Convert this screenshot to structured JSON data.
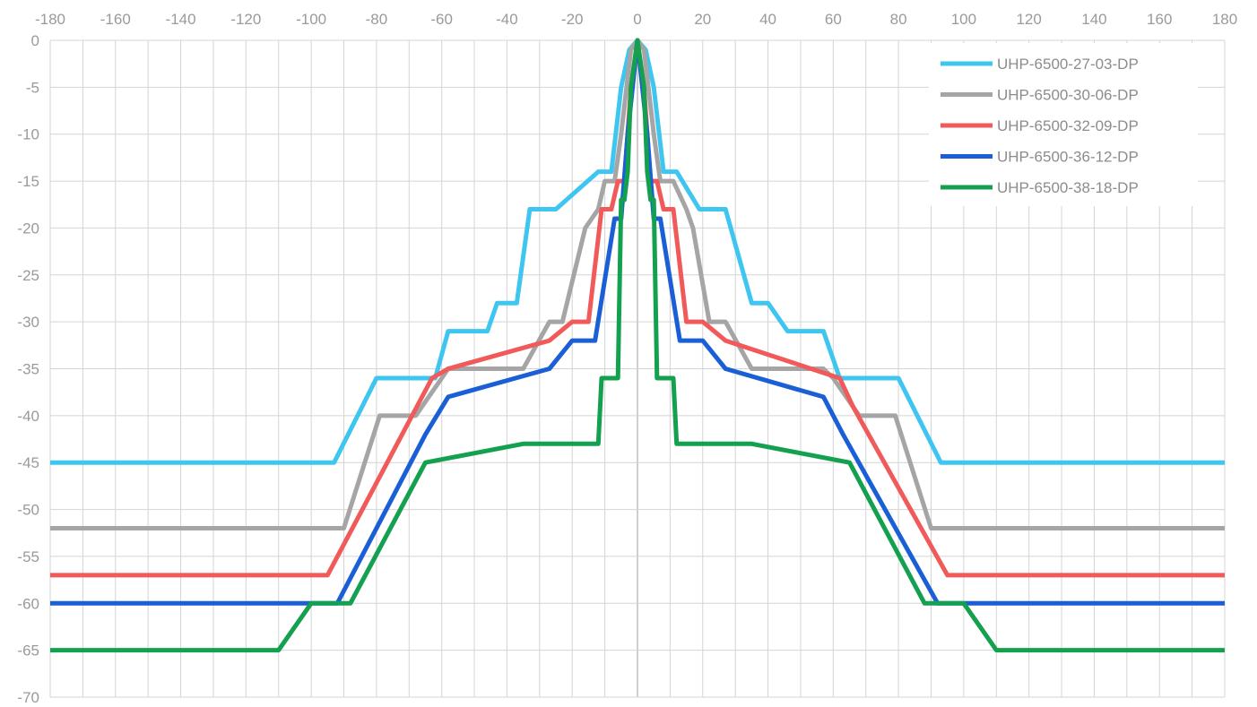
{
  "chart_data": {
    "type": "line",
    "title": "",
    "xlabel": "",
    "ylabel": "",
    "xlim": [
      -180,
      180
    ],
    "ylim": [
      -70,
      0
    ],
    "x_ticks": [
      -180,
      -160,
      -140,
      -120,
      -100,
      -80,
      -60,
      -40,
      -20,
      0,
      20,
      40,
      60,
      80,
      100,
      120,
      140,
      160,
      180
    ],
    "y_ticks": [
      0,
      -5,
      -10,
      -15,
      -20,
      -25,
      -30,
      -35,
      -40,
      -45,
      -50,
      -55,
      -60,
      -65,
      -70
    ],
    "x_tick_labels": [
      "-180",
      "-160",
      "-140",
      "-120",
      "-100",
      "-80",
      "-60",
      "-40",
      "-20",
      "0",
      "20",
      "40",
      "60",
      "80",
      "100",
      "120",
      "140",
      "160",
      "180"
    ],
    "y_tick_labels": [
      "0",
      "-5",
      "-10",
      "-15",
      "-20",
      "-25",
      "-30",
      "-35",
      "-40",
      "-45",
      "-50",
      "-55",
      "-60",
      "-65",
      "-70"
    ],
    "x_axis_position": "top",
    "grid": true,
    "legend_position": "top-right",
    "series": [
      {
        "name": "UHP-6500-27-03-DP",
        "color": "#3ec6f0",
        "points": [
          [
            -180,
            -45
          ],
          [
            -93,
            -45
          ],
          [
            -80,
            -36
          ],
          [
            -62,
            -36
          ],
          [
            -58,
            -31
          ],
          [
            -46,
            -31
          ],
          [
            -43,
            -28
          ],
          [
            -37,
            -28
          ],
          [
            -33,
            -18
          ],
          [
            -25,
            -18
          ],
          [
            -12,
            -14
          ],
          [
            -8,
            -14
          ],
          [
            -5,
            -5
          ],
          [
            -2.5,
            -1
          ],
          [
            0,
            0
          ],
          [
            2.5,
            -1
          ],
          [
            5,
            -5
          ],
          [
            8,
            -14
          ],
          [
            12,
            -14
          ],
          [
            19,
            -18
          ],
          [
            27,
            -18
          ],
          [
            35,
            -28
          ],
          [
            40,
            -28
          ],
          [
            46,
            -31
          ],
          [
            57,
            -31
          ],
          [
            62,
            -36
          ],
          [
            80,
            -36
          ],
          [
            93,
            -45
          ],
          [
            180,
            -45
          ]
        ]
      },
      {
        "name": "UHP-6500-30-06-DP",
        "color": "#a5a5a5",
        "points": [
          [
            -180,
            -52
          ],
          [
            -90,
            -52
          ],
          [
            -79,
            -40
          ],
          [
            -68,
            -40
          ],
          [
            -60,
            -36
          ],
          [
            -58,
            -35
          ],
          [
            -35,
            -35
          ],
          [
            -27,
            -30
          ],
          [
            -23,
            -30
          ],
          [
            -16,
            -20
          ],
          [
            -12,
            -18
          ],
          [
            -10,
            -15
          ],
          [
            -7,
            -15
          ],
          [
            -5,
            -10
          ],
          [
            -2,
            -1
          ],
          [
            0,
            0
          ],
          [
            2,
            -1
          ],
          [
            5,
            -10
          ],
          [
            7,
            -15
          ],
          [
            11,
            -15
          ],
          [
            15,
            -18
          ],
          [
            17,
            -20
          ],
          [
            22,
            -30
          ],
          [
            27,
            -30
          ],
          [
            35,
            -35
          ],
          [
            57,
            -35
          ],
          [
            60,
            -36
          ],
          [
            68,
            -40
          ],
          [
            79,
            -40
          ],
          [
            90,
            -52
          ],
          [
            180,
            -52
          ]
        ]
      },
      {
        "name": "UHP-6500-32-09-DP",
        "color": "#f05a5a",
        "points": [
          [
            -180,
            -57
          ],
          [
            -95,
            -57
          ],
          [
            -63,
            -36
          ],
          [
            -58,
            -35
          ],
          [
            -27,
            -32
          ],
          [
            -20,
            -30
          ],
          [
            -15,
            -30
          ],
          [
            -11,
            -18
          ],
          [
            -8,
            -18
          ],
          [
            -6,
            -15
          ],
          [
            -4,
            -15
          ],
          [
            -2,
            -5
          ],
          [
            0,
            0
          ],
          [
            2,
            -5
          ],
          [
            4,
            -15
          ],
          [
            6,
            -15
          ],
          [
            8,
            -18
          ],
          [
            11,
            -18
          ],
          [
            15,
            -30
          ],
          [
            20,
            -30
          ],
          [
            27,
            -32
          ],
          [
            62,
            -36
          ],
          [
            66,
            -39
          ],
          [
            95,
            -57
          ],
          [
            180,
            -57
          ]
        ]
      },
      {
        "name": "UHP-6500-36-12-DP",
        "color": "#1a5fd6",
        "points": [
          [
            -180,
            -60
          ],
          [
            -92,
            -60
          ],
          [
            -65,
            -42
          ],
          [
            -58,
            -38
          ],
          [
            -27,
            -35
          ],
          [
            -20,
            -32
          ],
          [
            -13,
            -32
          ],
          [
            -7,
            -19
          ],
          [
            -5,
            -19
          ],
          [
            -3,
            -10
          ],
          [
            0,
            0
          ],
          [
            3,
            -10
          ],
          [
            5,
            -19
          ],
          [
            7,
            -19
          ],
          [
            13,
            -32
          ],
          [
            20,
            -32
          ],
          [
            27,
            -35
          ],
          [
            57,
            -38
          ],
          [
            63,
            -42
          ],
          [
            92,
            -60
          ],
          [
            180,
            -60
          ]
        ]
      },
      {
        "name": "UHP-6500-38-18-DP",
        "color": "#13a04f",
        "points": [
          [
            -180,
            -65
          ],
          [
            -110,
            -65
          ],
          [
            -100,
            -60
          ],
          [
            -88,
            -60
          ],
          [
            -65,
            -45
          ],
          [
            -35,
            -43
          ],
          [
            -12,
            -43
          ],
          [
            -11,
            -36
          ],
          [
            -6,
            -36
          ],
          [
            -5,
            -17
          ],
          [
            -4,
            -17
          ],
          [
            -3,
            -14
          ],
          [
            -2,
            -5
          ],
          [
            0,
            0
          ],
          [
            2,
            -5
          ],
          [
            3,
            -14
          ],
          [
            4,
            -17
          ],
          [
            5,
            -17
          ],
          [
            6,
            -36
          ],
          [
            11,
            -36
          ],
          [
            12,
            -43
          ],
          [
            35,
            -43
          ],
          [
            65,
            -45
          ],
          [
            88,
            -60
          ],
          [
            100,
            -60
          ],
          [
            110,
            -65
          ],
          [
            180,
            -65
          ]
        ]
      }
    ]
  }
}
